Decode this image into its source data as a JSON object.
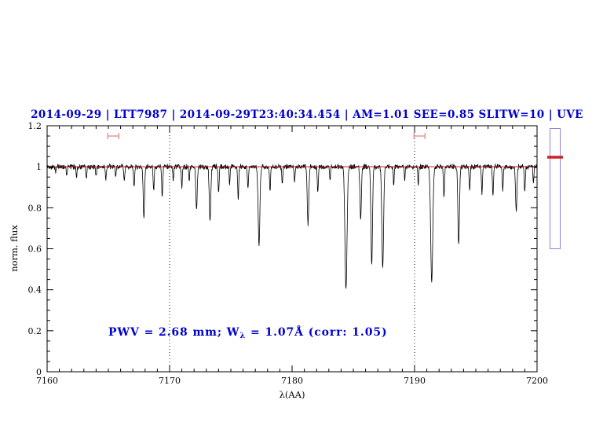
{
  "header": {
    "title": "2014-09-29 | LTT7987 | 2014-09-29T23:40:34.454 | AM=1.01 SEE=0.85 SLITW=10 | UVE",
    "color": "#0000cc"
  },
  "annotation": {
    "part1": "PWV = 2.68 mm; W",
    "sub": "λ",
    "part2": " = 1.07Å (corr: 1.05)",
    "color": "#0000cc"
  },
  "side_gauge": {
    "border_color": "#8888dd",
    "marker_color": "#cc2222"
  },
  "chart_data": {
    "type": "line",
    "title": "Telluric water vapour absorption spectrum, normalized flux vs wavelength",
    "xlabel": "λ(AA)",
    "ylabel": "norm. flux",
    "xlim": [
      7160,
      7200
    ],
    "ylim": [
      0,
      1.2
    ],
    "grid": false,
    "xticks": {
      "major": [
        7160,
        7170,
        7180,
        7190,
        7200
      ],
      "labels": [
        "7160",
        "7170",
        "7180",
        "7190",
        "7200"
      ],
      "minor_step": 1
    },
    "yticks": {
      "major": [
        0,
        0.2,
        0.4,
        0.6,
        0.8,
        1,
        1.2
      ],
      "labels": [
        "0",
        "0.2",
        "0.4",
        "0.6",
        "0.8",
        "1",
        "1.2"
      ],
      "minor_step": 0.05
    },
    "line_color": "#000000",
    "reference_line": {
      "y": 1.0,
      "color": "#b22222"
    },
    "dotted_guides": {
      "x": [
        7170,
        7190
      ],
      "color": "#000000"
    },
    "continuum": 1.0,
    "noise_amplitude": 0.007,
    "sample_step": 0.02,
    "range_markers": {
      "y": 1.15,
      "color": "#e08080",
      "half_width": 0.45,
      "centers": [
        7165.4,
        7190.4
      ]
    },
    "absorption_lines": [
      [
        7160.7,
        0.03,
        0.05
      ],
      [
        7161.6,
        0.04,
        0.05
      ],
      [
        7162.4,
        0.05,
        0.05
      ],
      [
        7163.2,
        0.06,
        0.06
      ],
      [
        7164.0,
        0.05,
        0.05
      ],
      [
        7164.8,
        0.06,
        0.06
      ],
      [
        7165.6,
        0.05,
        0.05
      ],
      [
        7166.3,
        0.07,
        0.06
      ],
      [
        7167.1,
        0.1,
        0.06
      ],
      [
        7167.9,
        0.25,
        0.08
      ],
      [
        7168.7,
        0.12,
        0.06
      ],
      [
        7169.4,
        0.15,
        0.06
      ],
      [
        7170.3,
        0.07,
        0.05
      ],
      [
        7171.0,
        0.1,
        0.06
      ],
      [
        7171.6,
        0.07,
        0.05
      ],
      [
        7172.2,
        0.21,
        0.08
      ],
      [
        7173.3,
        0.26,
        0.09
      ],
      [
        7174.0,
        0.13,
        0.06
      ],
      [
        7174.9,
        0.09,
        0.05
      ],
      [
        7175.6,
        0.16,
        0.06
      ],
      [
        7176.4,
        0.11,
        0.06
      ],
      [
        7177.3,
        0.38,
        0.1
      ],
      [
        7178.2,
        0.12,
        0.06
      ],
      [
        7179.2,
        0.08,
        0.06
      ],
      [
        7180.2,
        0.07,
        0.05
      ],
      [
        7181.3,
        0.28,
        0.09
      ],
      [
        7182.1,
        0.13,
        0.06
      ],
      [
        7183.1,
        0.07,
        0.05
      ],
      [
        7184.4,
        0.6,
        0.12
      ],
      [
        7185.6,
        0.26,
        0.08
      ],
      [
        7186.5,
        0.48,
        0.09
      ],
      [
        7187.4,
        0.5,
        0.1
      ],
      [
        7188.3,
        0.1,
        0.05
      ],
      [
        7189.2,
        0.06,
        0.05
      ],
      [
        7190.3,
        0.09,
        0.05
      ],
      [
        7191.4,
        0.56,
        0.12
      ],
      [
        7192.4,
        0.15,
        0.06
      ],
      [
        7193.6,
        0.38,
        0.09
      ],
      [
        7194.5,
        0.11,
        0.06
      ],
      [
        7195.5,
        0.13,
        0.06
      ],
      [
        7196.4,
        0.14,
        0.06
      ],
      [
        7197.2,
        0.11,
        0.06
      ],
      [
        7198.3,
        0.22,
        0.08
      ],
      [
        7199.0,
        0.12,
        0.06
      ],
      [
        7199.7,
        0.08,
        0.05
      ]
    ]
  }
}
